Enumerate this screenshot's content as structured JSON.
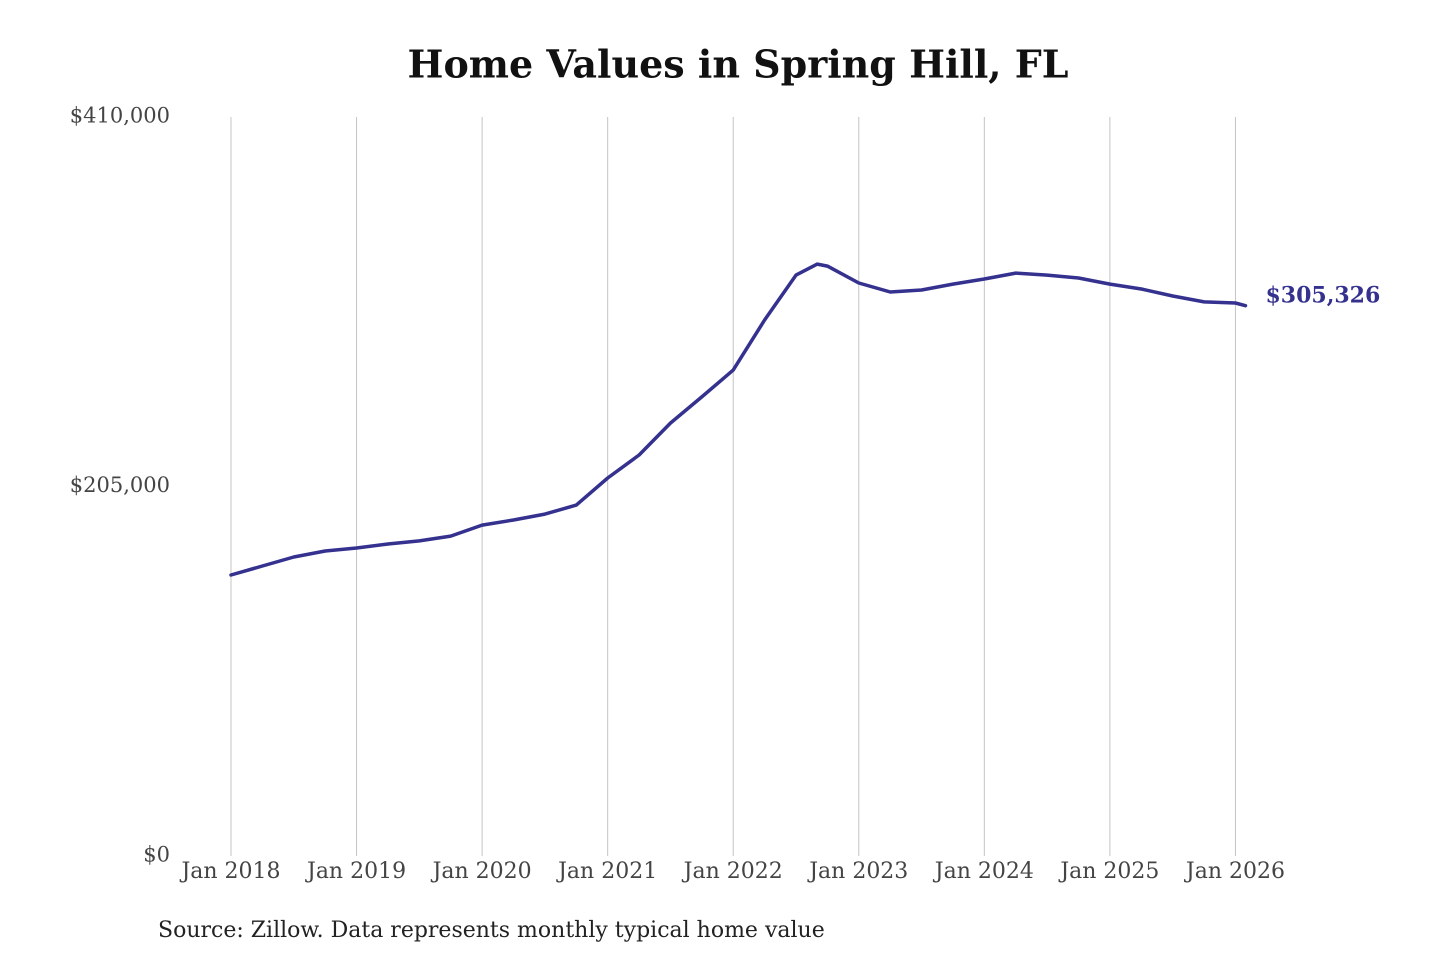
{
  "chart_data": {
    "type": "line",
    "title": "Home Values in Spring Hill, FL",
    "source": "Source: Zillow. Data represents monthly typical home value",
    "x": [
      2018.0,
      2018.25,
      2018.5,
      2018.75,
      2019.0,
      2019.25,
      2019.5,
      2019.75,
      2020.0,
      2020.25,
      2020.5,
      2020.75,
      2021.0,
      2021.25,
      2021.5,
      2021.75,
      2022.0,
      2022.25,
      2022.5,
      2022.67,
      2022.75,
      2023.0,
      2023.25,
      2023.5,
      2023.75,
      2024.0,
      2024.25,
      2024.5,
      2024.75,
      2025.0,
      2025.25,
      2025.5,
      2025.75,
      2026.0,
      2026.08
    ],
    "series": [
      {
        "name": "Typical home value",
        "color": "#35318f",
        "values": [
          155900,
          160900,
          165900,
          169200,
          170900,
          173100,
          174800,
          177500,
          183600,
          186400,
          189700,
          194700,
          209700,
          222500,
          240200,
          254700,
          269600,
          297400,
          322300,
          328400,
          327300,
          317900,
          312900,
          314000,
          317300,
          320100,
          323400,
          322300,
          320700,
          317300,
          314600,
          310700,
          307400,
          306800,
          305326
        ],
        "value_labels": [
          null,
          null,
          null,
          null,
          null,
          null,
          null,
          null,
          null,
          null,
          null,
          null,
          null,
          null,
          null,
          null,
          null,
          null,
          null,
          null,
          null,
          null,
          null,
          null,
          null,
          null,
          null,
          null,
          null,
          null,
          null,
          null,
          null,
          null,
          "$305,326"
        ]
      }
    ],
    "xlim": [
      2018,
      2026.1
    ],
    "xticks": [
      {
        "value": 2018,
        "label": "Jan 2018"
      },
      {
        "value": 2019,
        "label": "Jan 2019"
      },
      {
        "value": 2020,
        "label": "Jan 2020"
      },
      {
        "value": 2021,
        "label": "Jan 2021"
      },
      {
        "value": 2022,
        "label": "Jan 2022"
      },
      {
        "value": 2023,
        "label": "Jan 2023"
      },
      {
        "value": 2024,
        "label": "Jan 2024"
      },
      {
        "value": 2025,
        "label": "Jan 2025"
      },
      {
        "value": 2026,
        "label": "Jan 2026"
      }
    ],
    "ylim": [
      0,
      410000
    ],
    "yticks": [
      {
        "value": 0,
        "label": "$0"
      },
      {
        "value": 205000,
        "label": "$205,000"
      },
      {
        "value": 410000,
        "label": "$410,000"
      }
    ],
    "grid": "x"
  }
}
